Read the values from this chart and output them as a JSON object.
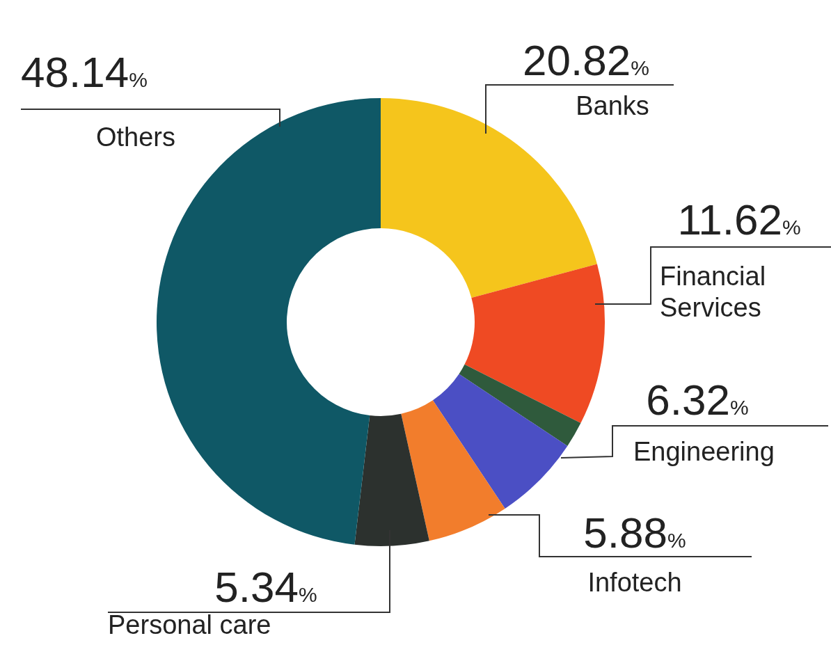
{
  "chart_data": {
    "type": "donut",
    "categories": [
      "Banks",
      "Financial Services",
      null,
      "Engineering",
      "Infotech",
      "Personal care",
      "Others"
    ],
    "values": [
      20.82,
      11.62,
      1.88,
      6.32,
      5.88,
      5.34,
      48.14
    ],
    "value_labels": [
      "20.82%",
      "11.62%",
      null,
      "6.32%",
      "5.88%",
      "5.34%",
      "48.14%"
    ],
    "colors": [
      "#f5c51c",
      "#ef4a23",
      "#2f5a3c",
      "#4b4fc4",
      "#f27d2c",
      "#2c312e",
      "#0f5866"
    ]
  }
}
